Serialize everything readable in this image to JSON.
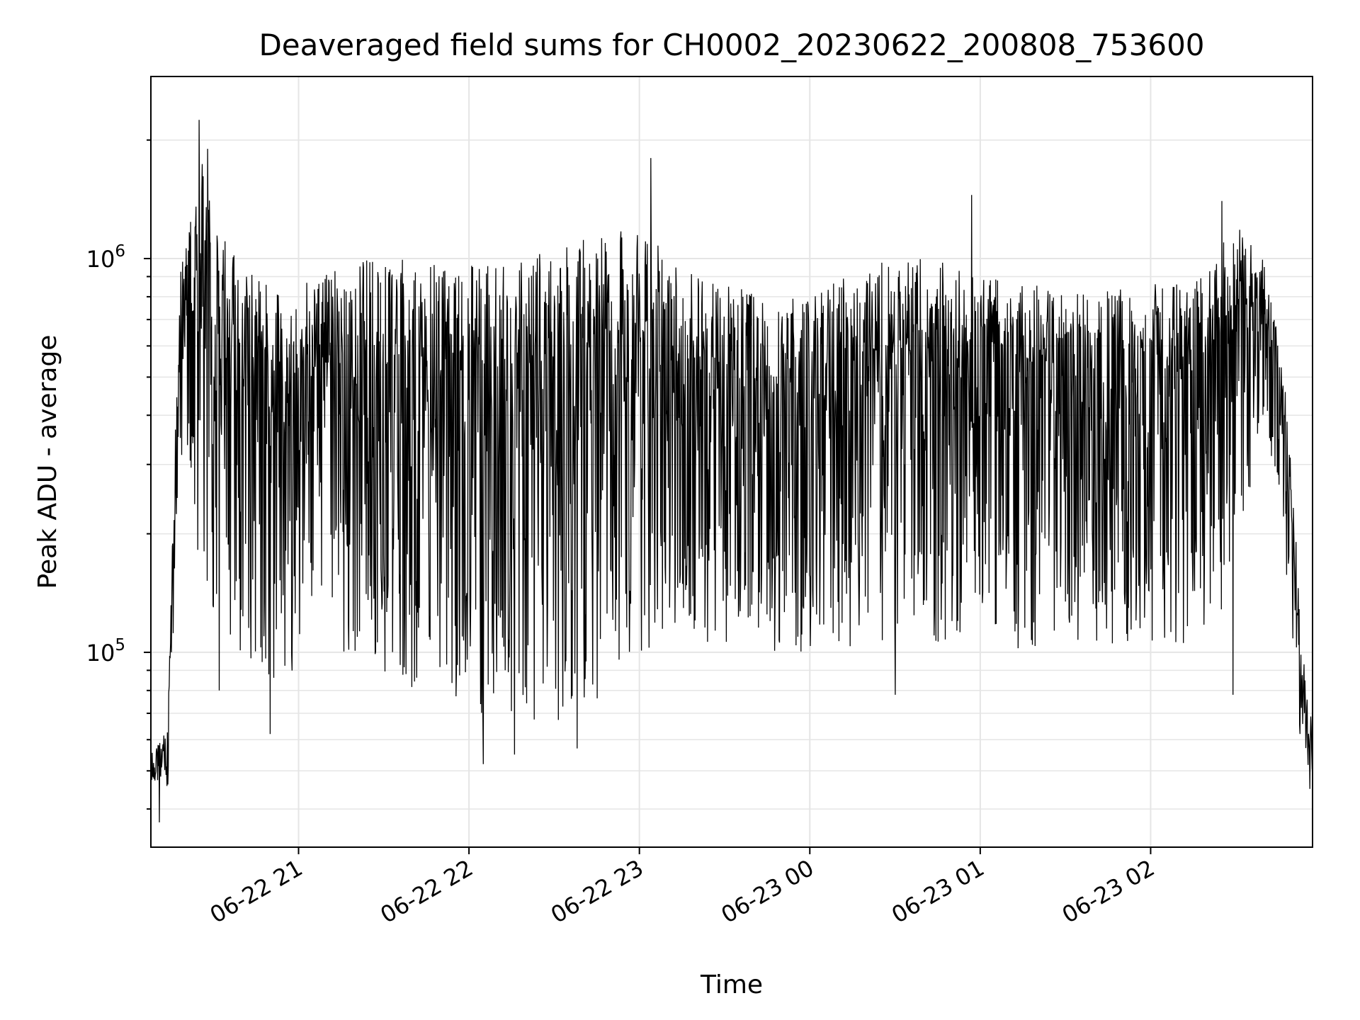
{
  "chart_data": {
    "type": "line",
    "title": "Deaveraged field sums for CH0002_20230622_200808_753600",
    "xlabel": "Time",
    "ylabel": "Peak ADU - average",
    "yscale": "log",
    "xlim": [
      "2023-06-22 20:08",
      "2023-06-23 02:57"
    ],
    "ylim": [
      32000,
      2900000
    ],
    "x_ticks": [
      {
        "value": "2023-06-22 21:00",
        "label": "06-22 21"
      },
      {
        "value": "2023-06-22 22:00",
        "label": "06-22 22"
      },
      {
        "value": "2023-06-22 23:00",
        "label": "06-22 23"
      },
      {
        "value": "2023-06-23 00:00",
        "label": "06-23 00"
      },
      {
        "value": "2023-06-23 01:00",
        "label": "06-23 01"
      },
      {
        "value": "2023-06-23 02:00",
        "label": "06-23 02"
      }
    ],
    "y_ticks": [
      {
        "value": 100000,
        "base": "10",
        "exp": "5"
      },
      {
        "value": 1000000,
        "base": "10",
        "exp": "6"
      }
    ],
    "grid": true,
    "line_color": "#000000",
    "grid_color": "#e5e5e5",
    "series": [
      {
        "envelope": [
          {
            "t": "2023-06-22 20:08",
            "lo": 47000,
            "hi": 55000
          },
          {
            "t": "2023-06-22 20:14",
            "lo": 45000,
            "hi": 65000
          },
          {
            "t": "2023-06-22 20:18",
            "lo": 300000,
            "hi": 1000000
          },
          {
            "t": "2023-06-22 20:22",
            "lo": 250000,
            "hi": 1400000
          },
          {
            "t": "2023-06-22 20:26",
            "lo": 120000,
            "hi": 2100000
          },
          {
            "t": "2023-06-22 20:30",
            "lo": 100000,
            "hi": 1500000
          },
          {
            "t": "2023-06-22 20:40",
            "lo": 95000,
            "hi": 1100000
          },
          {
            "t": "2023-06-22 20:50",
            "lo": 80000,
            "hi": 1000000
          },
          {
            "t": "2023-06-22 21:00",
            "lo": 85000,
            "hi": 1000000
          },
          {
            "t": "2023-06-22 21:15",
            "lo": 95000,
            "hi": 1100000
          },
          {
            "t": "2023-06-22 21:30",
            "lo": 85000,
            "hi": 1200000
          },
          {
            "t": "2023-06-22 21:45",
            "lo": 70000,
            "hi": 1150000
          },
          {
            "t": "2023-06-22 22:00",
            "lo": 65000,
            "hi": 1150000
          },
          {
            "t": "2023-06-22 22:15",
            "lo": 62000,
            "hi": 1200000
          },
          {
            "t": "2023-06-22 22:30",
            "lo": 62000,
            "hi": 1250000
          },
          {
            "t": "2023-06-22 22:45",
            "lo": 70000,
            "hi": 1400000
          },
          {
            "t": "2023-06-22 23:00",
            "lo": 90000,
            "hi": 1450000
          },
          {
            "t": "2023-06-22 23:15",
            "lo": 100000,
            "hi": 1100000
          },
          {
            "t": "2023-06-22 23:30",
            "lo": 100000,
            "hi": 1000000
          },
          {
            "t": "2023-06-22 23:45",
            "lo": 95000,
            "hi": 950000
          },
          {
            "t": "2023-06-23 00:00",
            "lo": 95000,
            "hi": 950000
          },
          {
            "t": "2023-06-23 00:15",
            "lo": 95000,
            "hi": 1050000
          },
          {
            "t": "2023-06-23 00:30",
            "lo": 90000,
            "hi": 1200000
          },
          {
            "t": "2023-06-23 00:45",
            "lo": 95000,
            "hi": 1150000
          },
          {
            "t": "2023-06-23 01:00",
            "lo": 105000,
            "hi": 1050000
          },
          {
            "t": "2023-06-23 01:15",
            "lo": 95000,
            "hi": 1000000
          },
          {
            "t": "2023-06-23 01:30",
            "lo": 100000,
            "hi": 950000
          },
          {
            "t": "2023-06-23 01:45",
            "lo": 100000,
            "hi": 950000
          },
          {
            "t": "2023-06-23 02:00",
            "lo": 95000,
            "hi": 1000000
          },
          {
            "t": "2023-06-23 02:15",
            "lo": 95000,
            "hi": 1000000
          },
          {
            "t": "2023-06-23 02:30",
            "lo": 140000,
            "hi": 1400000
          },
          {
            "t": "2023-06-23 02:40",
            "lo": 400000,
            "hi": 1050000
          },
          {
            "t": "2023-06-23 02:48",
            "lo": 150000,
            "hi": 500000
          },
          {
            "t": "2023-06-23 02:53",
            "lo": 55000,
            "hi": 120000
          },
          {
            "t": "2023-06-23 02:57",
            "lo": 48000,
            "hi": 62000
          }
        ],
        "spikes": [
          {
            "t": "2023-06-22 20:25",
            "v": 2250000
          },
          {
            "t": "2023-06-22 20:28",
            "v": 1900000
          },
          {
            "t": "2023-06-22 20:32",
            "v": 80000
          },
          {
            "t": "2023-06-22 20:50",
            "v": 62000
          },
          {
            "t": "2023-06-22 22:05",
            "v": 52000
          },
          {
            "t": "2023-06-22 22:16",
            "v": 55000
          },
          {
            "t": "2023-06-22 22:38",
            "v": 57000
          },
          {
            "t": "2023-06-22 23:04",
            "v": 1800000
          },
          {
            "t": "2023-06-23 00:30",
            "v": 78000
          },
          {
            "t": "2023-06-23 00:57",
            "v": 1450000
          },
          {
            "t": "2023-06-23 02:25",
            "v": 1400000
          },
          {
            "t": "2023-06-23 02:29",
            "v": 78000
          },
          {
            "t": "2023-06-22 20:11",
            "v": 37000
          },
          {
            "t": "2023-06-23 02:56",
            "v": 45000
          }
        ]
      }
    ]
  }
}
